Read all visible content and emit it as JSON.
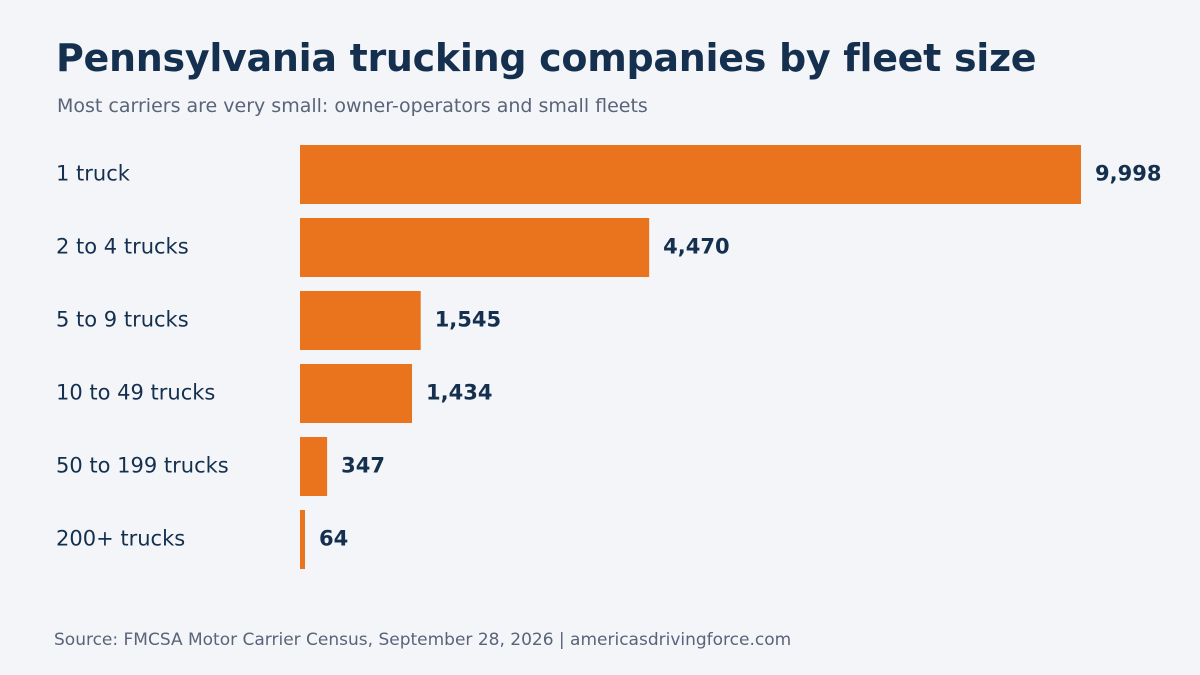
{
  "header": {
    "title": "Pennsylvania trucking companies by fleet size",
    "subtitle": "Most carriers are very small: owner-operators and small fleets"
  },
  "footer": {
    "source": "Source: FMCSA Motor Carrier Census, September 28, 2026 | americasdrivingforce.com"
  },
  "colors": {
    "bar": "#e9741d",
    "label_text": "#14304e",
    "value_text": "#14304e"
  },
  "chart_data": {
    "type": "bar",
    "orientation": "horizontal",
    "title": "Pennsylvania trucking companies by fleet size",
    "subtitle": "Most carriers are very small: owner-operators and small fleets",
    "categories": [
      "1 truck",
      "2 to 4 trucks",
      "5 to 9 trucks",
      "10 to 49 trucks",
      "50 to 199 trucks",
      "200+ trucks"
    ],
    "values": [
      9998,
      4470,
      1545,
      1434,
      347,
      64
    ],
    "value_labels": [
      "9,998",
      "4,470",
      "1,545",
      "1,434",
      "347",
      "64"
    ],
    "xlabel": "",
    "ylabel": "",
    "xlim": [
      0,
      9998
    ],
    "grid": false,
    "legend": "none",
    "data_labels": true
  }
}
